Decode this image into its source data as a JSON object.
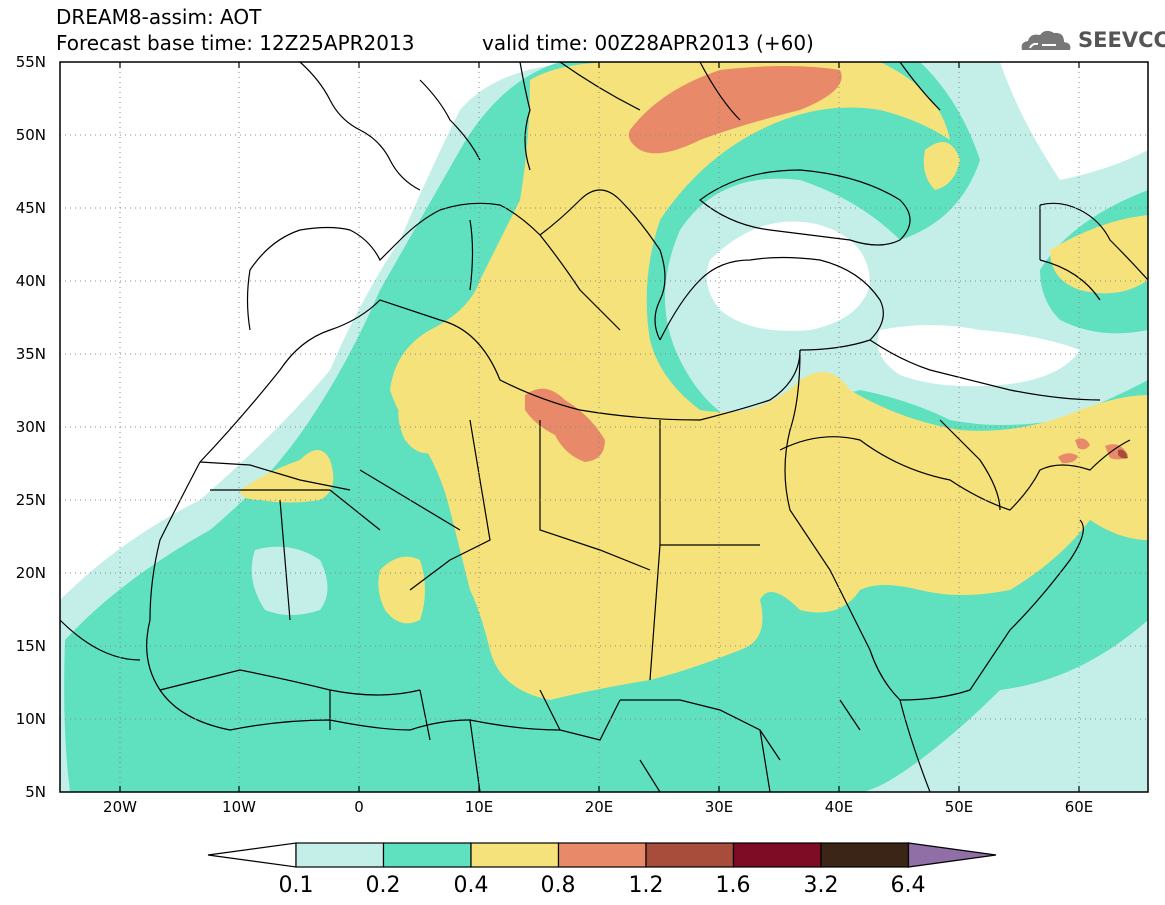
{
  "header": {
    "title": "DREAM8-assim: AOT",
    "base_time": "Forecast base time: 12Z25APR2013",
    "valid_time": "valid time: 00Z28APR2013 (+60)",
    "logo_text": "SEEVCCC"
  },
  "map": {
    "lon_range": [
      -25,
      65
    ],
    "lat_range": [
      5,
      55
    ],
    "lon_ticks": [
      "20W",
      "10W",
      "0",
      "10E",
      "20E",
      "30E",
      "40E",
      "50E",
      "60E"
    ],
    "lat_ticks": [
      "55N",
      "50N",
      "45N",
      "40N",
      "35N",
      "30N",
      "25N",
      "20N",
      "15N",
      "10N",
      "5N"
    ],
    "grid": "dotted",
    "variable": "AOT"
  },
  "legend": {
    "levels": [
      "0.1",
      "0.2",
      "0.4",
      "0.8",
      "1.2",
      "1.6",
      "3.2",
      "6.4"
    ],
    "colors": [
      "#ffffff",
      "#c4efe9",
      "#5fe0bf",
      "#f5e27a",
      "#e88a6a",
      "#a84d3c",
      "#7e0c25",
      "#3a2516",
      "#8f6fa6"
    ]
  }
}
